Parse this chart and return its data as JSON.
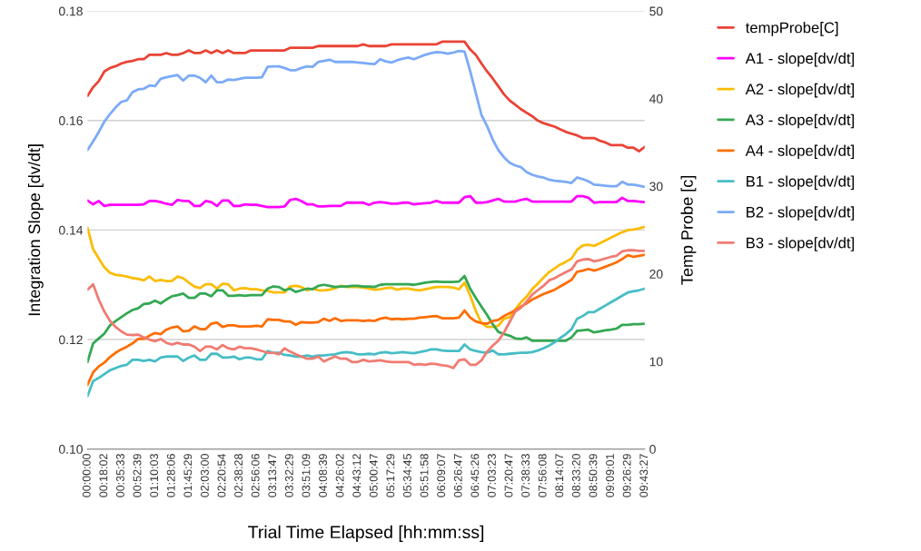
{
  "chart_data": {
    "type": "line",
    "xlabel": "Trial Time Elapsed [hh:mm:ss]",
    "ylabel": "Integration Slope [dv/dt]",
    "y2label": "Temp Probe [c]",
    "categories": [
      "00:00:00",
      null,
      null,
      "00:18:02",
      null,
      null,
      "00:35:33",
      null,
      null,
      "00:52:39",
      null,
      null,
      "01:10:03",
      null,
      null,
      "01:28:06",
      null,
      null,
      "01:45:29",
      null,
      null,
      "02:03:00",
      null,
      null,
      "02:20:54",
      null,
      null,
      "02:38:28",
      null,
      null,
      "02:56:06",
      null,
      null,
      "03:13:47",
      null,
      null,
      "03:32:29",
      null,
      null,
      "03:51:09",
      null,
      null,
      "04:08:39",
      null,
      null,
      "04:26:02",
      null,
      null,
      "04:43:12",
      null,
      null,
      "05:00:47",
      null,
      null,
      "05:17:29",
      null,
      null,
      "05:34:45",
      null,
      null,
      "05:51:58",
      null,
      null,
      "06:09:07",
      null,
      null,
      "06:26:47",
      null,
      null,
      "06:45:26",
      null,
      null,
      "07:03:23",
      null,
      null,
      "07:20:47",
      null,
      null,
      "07:38:33",
      null,
      null,
      "07:56:08",
      null,
      null,
      "08:14:07",
      null,
      null,
      "08:33:20",
      null,
      null,
      "08:50:39",
      null,
      null,
      "09:09:01",
      null,
      null,
      "09:26:29",
      null,
      null,
      "09:43:27"
    ],
    "ylim": [
      0.1,
      0.18
    ],
    "yticks": [
      {
        "value": 0.1,
        "label": "0.10"
      },
      0.12,
      0.14,
      0.16,
      0.18
    ],
    "y2lim": [
      0,
      50
    ],
    "y2ticks": [
      0,
      10,
      20,
      30,
      40,
      50
    ],
    "grid": "y",
    "legend": "right",
    "marker": "none",
    "line_style": "solid",
    "series": [
      {
        "name": "tempProbe[C]",
        "color": "#ea4335",
        "axis": "y2",
        "values": [
          40.3,
          41.3,
          42.0,
          43.1,
          43.5,
          43.7,
          44.0,
          44.2,
          44.3,
          44.5,
          44.5,
          45.0,
          45.0,
          45.0,
          45.2,
          45.0,
          45.0,
          45.2,
          45.5,
          45.2,
          45.2,
          45.5,
          45.2,
          45.5,
          45.2,
          45.5,
          45.2,
          45.2,
          45.2,
          45.5,
          45.5,
          45.5,
          45.5,
          45.5,
          45.5,
          45.5,
          45.8,
          45.8,
          45.8,
          45.8,
          45.8,
          46.0,
          46.0,
          46.0,
          46.0,
          46.0,
          46.0,
          46.0,
          46.0,
          46.2,
          46.0,
          46.0,
          46.0,
          46.0,
          46.2,
          46.2,
          46.2,
          46.2,
          46.2,
          46.2,
          46.2,
          46.2,
          46.2,
          46.5,
          46.5,
          46.5,
          46.5,
          46.5,
          45.6,
          45.0,
          44.0,
          43.1,
          42.3,
          41.4,
          40.5,
          39.8,
          39.3,
          38.8,
          38.4,
          38.0,
          37.5,
          37.2,
          37.0,
          36.8,
          36.5,
          36.2,
          36.0,
          35.8,
          35.5,
          35.5,
          35.5,
          35.2,
          35.0,
          34.7,
          34.7,
          34.7,
          34.4,
          34.4,
          34.0,
          34.5
        ]
      },
      {
        "name": "A1 - slope[dv/dt]",
        "color": "#ff00ff",
        "values": [
          0.1454,
          0.1447,
          0.1453,
          0.1444,
          0.1446,
          0.1446,
          0.1446,
          0.1446,
          0.1446,
          0.1446,
          0.1447,
          0.1453,
          0.1453,
          0.1451,
          0.1448,
          0.1446,
          0.1455,
          0.1453,
          0.1453,
          0.1444,
          0.1444,
          0.1453,
          0.1451,
          0.1444,
          0.1454,
          0.1454,
          0.1444,
          0.1444,
          0.1447,
          0.1446,
          0.1446,
          0.1444,
          0.1442,
          0.1442,
          0.1442,
          0.1443,
          0.1455,
          0.1457,
          0.1453,
          0.1447,
          0.1447,
          0.1443,
          0.1443,
          0.1444,
          0.1444,
          0.1444,
          0.145,
          0.145,
          0.145,
          0.145,
          0.1446,
          0.145,
          0.1451,
          0.145,
          0.1448,
          0.1448,
          0.145,
          0.145,
          0.1447,
          0.1448,
          0.1449,
          0.145,
          0.1453,
          0.145,
          0.145,
          0.145,
          0.145,
          0.146,
          0.1462,
          0.145,
          0.145,
          0.1451,
          0.1454,
          0.1457,
          0.1452,
          0.1452,
          0.1452,
          0.1455,
          0.1457,
          0.1452,
          0.1452,
          0.1452,
          0.1452,
          0.1452,
          0.1452,
          0.1452,
          0.1452,
          0.1462,
          0.1462,
          0.1459,
          0.145,
          0.1451,
          0.1451,
          0.1451,
          0.1451,
          0.1459,
          0.1453,
          0.1453,
          0.1452,
          0.1451
        ]
      },
      {
        "name": "A2 - slope[dv/dt]",
        "color": "#fbbc04",
        "values": [
          0.1404,
          0.1365,
          0.1348,
          0.1332,
          0.1322,
          0.1318,
          0.1317,
          0.1315,
          0.1312,
          0.1311,
          0.1308,
          0.1315,
          0.1307,
          0.1309,
          0.1307,
          0.1307,
          0.1315,
          0.1312,
          0.1304,
          0.1297,
          0.1294,
          0.1301,
          0.1301,
          0.1293,
          0.1302,
          0.1301,
          0.129,
          0.1293,
          0.1294,
          0.1292,
          0.1292,
          0.129,
          0.1289,
          0.1286,
          0.1286,
          0.1286,
          0.1297,
          0.1298,
          0.1296,
          0.129,
          0.1293,
          0.129,
          0.129,
          0.1291,
          0.1294,
          0.1298,
          0.1296,
          0.1296,
          0.1296,
          0.1295,
          0.1293,
          0.1291,
          0.1292,
          0.1294,
          0.1295,
          0.1291,
          0.1293,
          0.1293,
          0.1291,
          0.129,
          0.1292,
          0.1294,
          0.1296,
          0.1296,
          0.1296,
          0.1295,
          0.1292,
          0.1304,
          0.128,
          0.1252,
          0.123,
          0.1223,
          0.1223,
          0.1225,
          0.1238,
          0.1241,
          0.1255,
          0.1268,
          0.1278,
          0.1292,
          0.1302,
          0.1313,
          0.1323,
          0.133,
          0.1337,
          0.1342,
          0.1348,
          0.1364,
          0.1372,
          0.1373,
          0.1371,
          0.1376,
          0.1381,
          0.1386,
          0.1391,
          0.1396,
          0.14,
          0.1401,
          0.1403,
          0.1406
        ]
      },
      {
        "name": "A3 - slope[dv/dt]",
        "color": "#34a853",
        "values": [
          0.1159,
          0.1193,
          0.1202,
          0.1211,
          0.1226,
          0.1234,
          0.1241,
          0.1248,
          0.1254,
          0.1257,
          0.1265,
          0.1266,
          0.1271,
          0.1266,
          0.1273,
          0.1279,
          0.1281,
          0.1284,
          0.1276,
          0.1276,
          0.1284,
          0.1284,
          0.1279,
          0.129,
          0.129,
          0.128,
          0.128,
          0.1281,
          0.128,
          0.1281,
          0.1281,
          0.1281,
          0.1293,
          0.1297,
          0.1296,
          0.129,
          0.1293,
          0.1287,
          0.129,
          0.1293,
          0.1292,
          0.1298,
          0.13,
          0.1298,
          0.1296,
          0.1297,
          0.1297,
          0.1298,
          0.1298,
          0.1297,
          0.1297,
          0.1296,
          0.13,
          0.1301,
          0.1301,
          0.1301,
          0.1301,
          0.1301,
          0.13,
          0.1302,
          0.1304,
          0.1305,
          0.1306,
          0.1305,
          0.1305,
          0.1305,
          0.1306,
          0.1316,
          0.1293,
          0.1276,
          0.126,
          0.1245,
          0.1228,
          0.1214,
          0.121,
          0.1207,
          0.1202,
          0.1201,
          0.1204,
          0.1198,
          0.1198,
          0.1198,
          0.1198,
          0.1198,
          0.1198,
          0.1198,
          0.1204,
          0.1216,
          0.1217,
          0.1218,
          0.1213,
          0.1215,
          0.1217,
          0.1218,
          0.122,
          0.1227,
          0.1227,
          0.1228,
          0.1228,
          0.1229
        ]
      },
      {
        "name": "A4 - slope[dv/dt]",
        "color": "#ff6d01",
        "values": [
          0.1117,
          0.114,
          0.1151,
          0.1158,
          0.1168,
          0.1176,
          0.1182,
          0.1187,
          0.1193,
          0.1201,
          0.1201,
          0.1207,
          0.1212,
          0.121,
          0.1218,
          0.1222,
          0.1224,
          0.1215,
          0.1216,
          0.1224,
          0.1219,
          0.1219,
          0.1229,
          0.1231,
          0.1223,
          0.1226,
          0.1226,
          0.1224,
          0.1224,
          0.1224,
          0.1225,
          0.1224,
          0.1237,
          0.1236,
          0.1236,
          0.1233,
          0.1233,
          0.1227,
          0.1232,
          0.1231,
          0.1231,
          0.1232,
          0.1238,
          0.1234,
          0.1239,
          0.1234,
          0.1235,
          0.1235,
          0.1235,
          0.1234,
          0.1235,
          0.1234,
          0.1238,
          0.124,
          0.1237,
          0.1238,
          0.1237,
          0.1238,
          0.1238,
          0.124,
          0.1241,
          0.1242,
          0.1243,
          0.1239,
          0.1239,
          0.1239,
          0.124,
          0.1253,
          0.124,
          0.1233,
          0.123,
          0.1229,
          0.1234,
          0.1236,
          0.1243,
          0.1248,
          0.1253,
          0.126,
          0.1266,
          0.1273,
          0.1278,
          0.1283,
          0.1287,
          0.1291,
          0.1297,
          0.1303,
          0.1309,
          0.1324,
          0.1326,
          0.1329,
          0.1326,
          0.1329,
          0.1333,
          0.1337,
          0.1341,
          0.1347,
          0.1354,
          0.1351,
          0.1353,
          0.1355
        ]
      },
      {
        "name": "B1 - slope[dv/dt]",
        "color": "#46bdc6",
        "values": [
          0.1097,
          0.1124,
          0.113,
          0.1137,
          0.1144,
          0.1148,
          0.1152,
          0.1154,
          0.1163,
          0.1163,
          0.1161,
          0.1163,
          0.116,
          0.1167,
          0.1169,
          0.1169,
          0.1169,
          0.1161,
          0.1167,
          0.1171,
          0.1163,
          0.1163,
          0.1174,
          0.1174,
          0.1167,
          0.1167,
          0.1169,
          0.1164,
          0.1167,
          0.1167,
          0.1164,
          0.1164,
          0.1179,
          0.1176,
          0.1176,
          0.1172,
          0.1171,
          0.1169,
          0.1169,
          0.1171,
          0.1169,
          0.1171,
          0.1171,
          0.1172,
          0.1173,
          0.1176,
          0.1177,
          0.1176,
          0.1173,
          0.1173,
          0.1174,
          0.1173,
          0.1176,
          0.1177,
          0.1175,
          0.1176,
          0.1177,
          0.1176,
          0.1175,
          0.1177,
          0.1179,
          0.1182,
          0.1182,
          0.118,
          0.1179,
          0.1179,
          0.1179,
          0.1191,
          0.1182,
          0.1179,
          0.1177,
          0.1176,
          0.118,
          0.1173,
          0.1173,
          0.1174,
          0.1175,
          0.1176,
          0.1176,
          0.1177,
          0.118,
          0.1184,
          0.1189,
          0.1195,
          0.1203,
          0.121,
          0.1219,
          0.1238,
          0.1243,
          0.125,
          0.125,
          0.1256,
          0.1262,
          0.1268,
          0.1274,
          0.128,
          0.1286,
          0.1288,
          0.129,
          0.1293
        ]
      },
      {
        "name": "B2 - slope[dv/dt]",
        "color": "#7baaf7",
        "values": [
          0.1546,
          0.1562,
          0.1579,
          0.1598,
          0.1612,
          0.1624,
          0.1634,
          0.1637,
          0.1652,
          0.1657,
          0.1658,
          0.1664,
          0.1663,
          0.1676,
          0.1679,
          0.1681,
          0.1683,
          0.1673,
          0.1682,
          0.1682,
          0.1678,
          0.167,
          0.1682,
          0.167,
          0.167,
          0.1675,
          0.1674,
          0.1676,
          0.1678,
          0.1678,
          0.1678,
          0.1679,
          0.1698,
          0.1699,
          0.1699,
          0.1696,
          0.1692,
          0.1692,
          0.1696,
          0.1699,
          0.1698,
          0.1707,
          0.1709,
          0.1711,
          0.1707,
          0.1707,
          0.1707,
          0.1707,
          0.1706,
          0.1705,
          0.1704,
          0.1703,
          0.1712,
          0.1708,
          0.1706,
          0.171,
          0.1713,
          0.1715,
          0.1712,
          0.1716,
          0.172,
          0.1723,
          0.1725,
          0.1724,
          0.1722,
          0.1724,
          0.1727,
          0.1726,
          0.169,
          0.165,
          0.161,
          0.159,
          0.1565,
          0.1546,
          0.1533,
          0.1523,
          0.1518,
          0.1515,
          0.1506,
          0.1501,
          0.1498,
          0.1496,
          0.1492,
          0.149,
          0.1489,
          0.1488,
          0.1486,
          0.1496,
          0.1493,
          0.1489,
          0.1483,
          0.1482,
          0.1481,
          0.148,
          0.148,
          0.1488,
          0.1483,
          0.1483,
          0.1481,
          0.1479
        ]
      },
      {
        "name": "B3 - slope[dv/dt]",
        "color": "#f07b72",
        "values": [
          0.1291,
          0.1301,
          0.1273,
          0.1251,
          0.1234,
          0.1223,
          0.1215,
          0.1209,
          0.1208,
          0.1209,
          0.1204,
          0.12,
          0.1197,
          0.1201,
          0.1194,
          0.1191,
          0.1194,
          0.1191,
          0.1191,
          0.1187,
          0.1179,
          0.1187,
          0.1187,
          0.1182,
          0.119,
          0.1184,
          0.1182,
          0.1187,
          0.1184,
          0.1184,
          0.1182,
          0.1179,
          0.1176,
          0.1176,
          0.1173,
          0.1184,
          0.1178,
          0.1173,
          0.1169,
          0.1165,
          0.1165,
          0.1169,
          0.116,
          0.1165,
          0.1169,
          0.1165,
          0.1165,
          0.1159,
          0.1159,
          0.1163,
          0.116,
          0.1161,
          0.1162,
          0.116,
          0.1159,
          0.1159,
          0.1159,
          0.1159,
          0.1154,
          0.1155,
          0.1154,
          0.1156,
          0.1155,
          0.1153,
          0.1152,
          0.1148,
          0.1162,
          0.1164,
          0.1154,
          0.1154,
          0.1162,
          0.1178,
          0.1189,
          0.1198,
          0.1213,
          0.1232,
          0.1251,
          0.1258,
          0.1269,
          0.1282,
          0.129,
          0.1298,
          0.1308,
          0.1312,
          0.1318,
          0.1323,
          0.1328,
          0.1343,
          0.1346,
          0.1347,
          0.1343,
          0.1345,
          0.1348,
          0.1351,
          0.1353,
          0.1361,
          0.1363,
          0.1363,
          0.1362,
          0.1362
        ]
      }
    ]
  }
}
